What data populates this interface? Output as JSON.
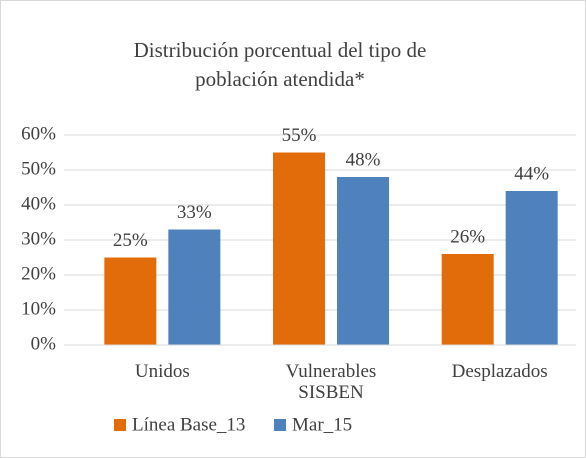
{
  "chart_data": {
    "type": "bar",
    "title": "Distribución porcentual del tipo de población atendida*",
    "categories": [
      "Unidos",
      "Vulnerables SISBEN",
      "Desplazados"
    ],
    "series": [
      {
        "name": "Línea Base_13",
        "color": "#e36c0a",
        "values": [
          25,
          55,
          26
        ],
        "value_labels": [
          "25%",
          "55%",
          "26%"
        ]
      },
      {
        "name": "Mar_15",
        "color": "#4f81bd",
        "values": [
          33,
          48,
          44
        ],
        "value_labels": [
          "33%",
          "48%",
          "44%"
        ]
      }
    ],
    "ylim": [
      0,
      60
    ],
    "yticks": [
      {
        "value": 0,
        "label": "0%"
      },
      {
        "value": 10,
        "label": "10%"
      },
      {
        "value": 20,
        "label": "20%"
      },
      {
        "value": 30,
        "label": "30%"
      },
      {
        "value": 40,
        "label": "40%"
      },
      {
        "value": 50,
        "label": "50%"
      },
      {
        "value": 60,
        "label": "60%"
      }
    ],
    "grid": true,
    "legend": "bottom"
  }
}
